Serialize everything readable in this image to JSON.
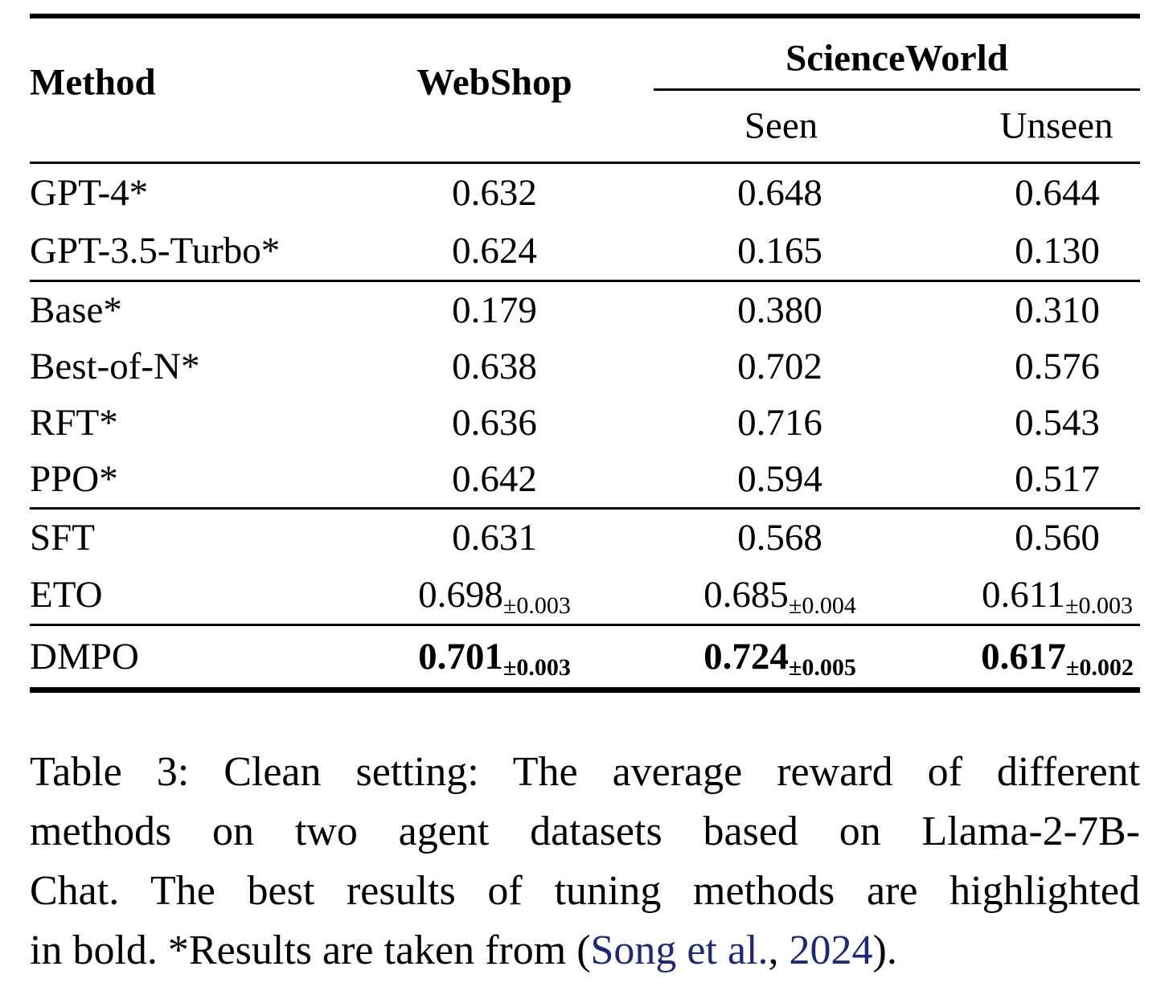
{
  "table": {
    "header": {
      "method": "Method",
      "webshop": "WebShop",
      "scienceworld": "ScienceWorld",
      "seen": "Seen",
      "unseen": "Unseen"
    },
    "sections": [
      {
        "rows": [
          {
            "method": "GPT-4*",
            "webshop": "0.632",
            "seen": "0.648",
            "unseen": "0.644"
          },
          {
            "method": "GPT-3.5-Turbo*",
            "webshop": "0.624",
            "seen": "0.165",
            "unseen": "0.130"
          }
        ]
      },
      {
        "rows": [
          {
            "method": "Base*",
            "webshop": "0.179",
            "seen": "0.380",
            "unseen": "0.310"
          },
          {
            "method": "Best-of-N*",
            "webshop": "0.638",
            "seen": "0.702",
            "unseen": "0.576"
          },
          {
            "method": "RFT*",
            "webshop": "0.636",
            "seen": "0.716",
            "unseen": "0.543"
          },
          {
            "method": "PPO*",
            "webshop": "0.642",
            "seen": "0.594",
            "unseen": "0.517"
          }
        ]
      },
      {
        "rows": [
          {
            "method": "SFT",
            "webshop": "0.631",
            "seen": "0.568",
            "unseen": "0.560"
          },
          {
            "method": "ETO",
            "webshop": "0.698",
            "webshop_sub": "±0.003",
            "seen": "0.685",
            "seen_sub": "±0.004",
            "unseen": "0.611",
            "unseen_sub": "±0.003"
          }
        ]
      },
      {
        "rows": [
          {
            "method": "DMPO",
            "webshop": "0.701",
            "webshop_sub": "±0.003",
            "seen": "0.724",
            "seen_sub": "±0.005",
            "unseen": "0.617",
            "unseen_sub": "±0.002"
          }
        ]
      }
    ]
  },
  "caption": {
    "line1": "Table 3: Clean setting: The average reward of different",
    "line2": "methods on two agent datasets based on Llama-2-7B-",
    "line3": "Chat. The best results of tuning methods are highlighted",
    "line4_prefix": "in bold. *Results are taken from (",
    "cite_authors": "Song et al.",
    "cite_sep": ", ",
    "cite_year": "2024",
    "line4_suffix": ")."
  }
}
